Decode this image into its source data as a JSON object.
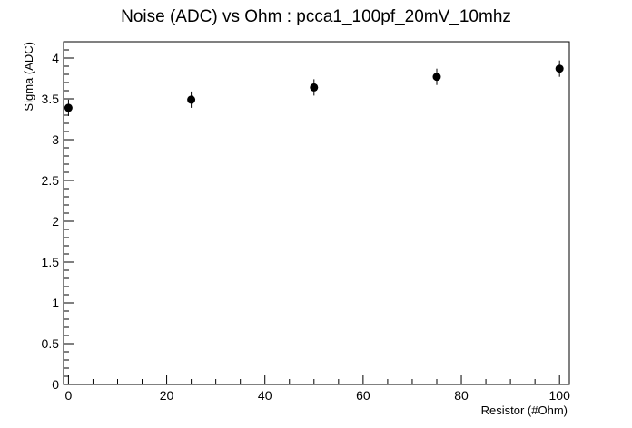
{
  "chart_data": {
    "type": "scatter",
    "title": "Noise (ADC) vs Ohm : pcca1_100pf_20mV_10mhz",
    "xlabel": "Resistor (#Ohm)",
    "ylabel": "Sigma (ADC)",
    "xlim": [
      -1,
      102
    ],
    "ylim": [
      0,
      4.2
    ],
    "x_ticks": [
      0,
      20,
      40,
      60,
      80,
      100
    ],
    "x_tick_labels": [
      "0",
      "20",
      "40",
      "60",
      "80",
      "100"
    ],
    "y_ticks": [
      0,
      0.5,
      1,
      1.5,
      2,
      2.5,
      3,
      3.5,
      4
    ],
    "y_tick_labels": [
      "0",
      "0.5",
      "1",
      "1.5",
      "2",
      "2.5",
      "3",
      "3.5",
      "4"
    ],
    "grid": false,
    "series": [
      {
        "x": [
          0,
          25,
          50,
          75,
          100
        ],
        "y": [
          3.39,
          3.49,
          3.64,
          3.77,
          3.87
        ],
        "y_err": [
          0.1,
          0.1,
          0.1,
          0.1,
          0.1
        ],
        "color": "#000000"
      }
    ]
  }
}
